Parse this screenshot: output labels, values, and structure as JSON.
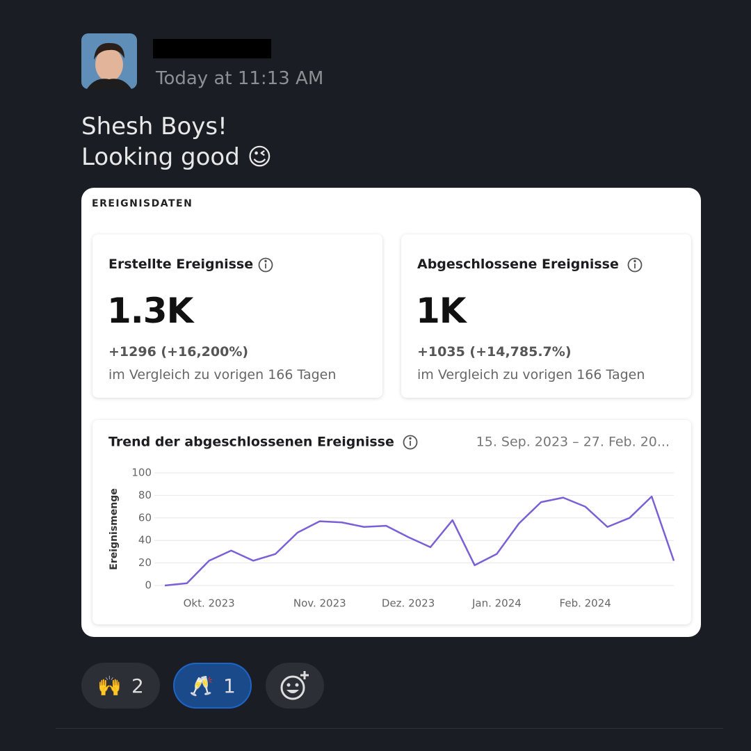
{
  "message": {
    "timestamp": "Today at 11:13 AM",
    "lines": [
      "Shesh Boys!",
      "Looking good 😉"
    ]
  },
  "card": {
    "section_title": "EREIGNISDATEN",
    "metrics": [
      {
        "title": "Erstellte Ereignisse",
        "value": "1.3K",
        "change": "+1296 (+16,200%)",
        "comparison": "im Vergleich zu vorigen 166 Tagen"
      },
      {
        "title": "Abgeschlossene Ereignisse",
        "value": "1K",
        "change": "+1035 (+14,785.7%)",
        "comparison": "im Vergleich zu vorigen 166 Tagen"
      }
    ]
  },
  "chart_data": {
    "type": "line",
    "title": "Trend der abgeschlossenen Ereignisse",
    "subtitle": "15. Sep. 2023 – 27. Feb. 20...",
    "ylabel": "Ereignismenge",
    "categories": [
      null,
      null,
      "Okt. 2023",
      null,
      null,
      null,
      null,
      "Nov. 2023",
      null,
      null,
      null,
      "Dez. 2023",
      null,
      null,
      null,
      "Jan. 2024",
      null,
      null,
      null,
      "Feb. 2024",
      null,
      null,
      null,
      null
    ],
    "values": [
      0,
      2,
      22,
      31,
      22,
      28,
      47,
      57,
      56,
      52,
      53,
      43,
      34,
      58,
      18,
      28,
      55,
      74,
      78,
      70,
      52,
      60,
      79,
      22
    ],
    "color": "#7b5fd6",
    "ylim": [
      0,
      100
    ],
    "yticks": [
      0,
      20,
      40,
      60,
      80,
      100
    ],
    "grid": true
  },
  "reactions": [
    {
      "emoji": "🙌",
      "count": 2
    },
    {
      "emoji": "🥂",
      "count": 1
    }
  ]
}
